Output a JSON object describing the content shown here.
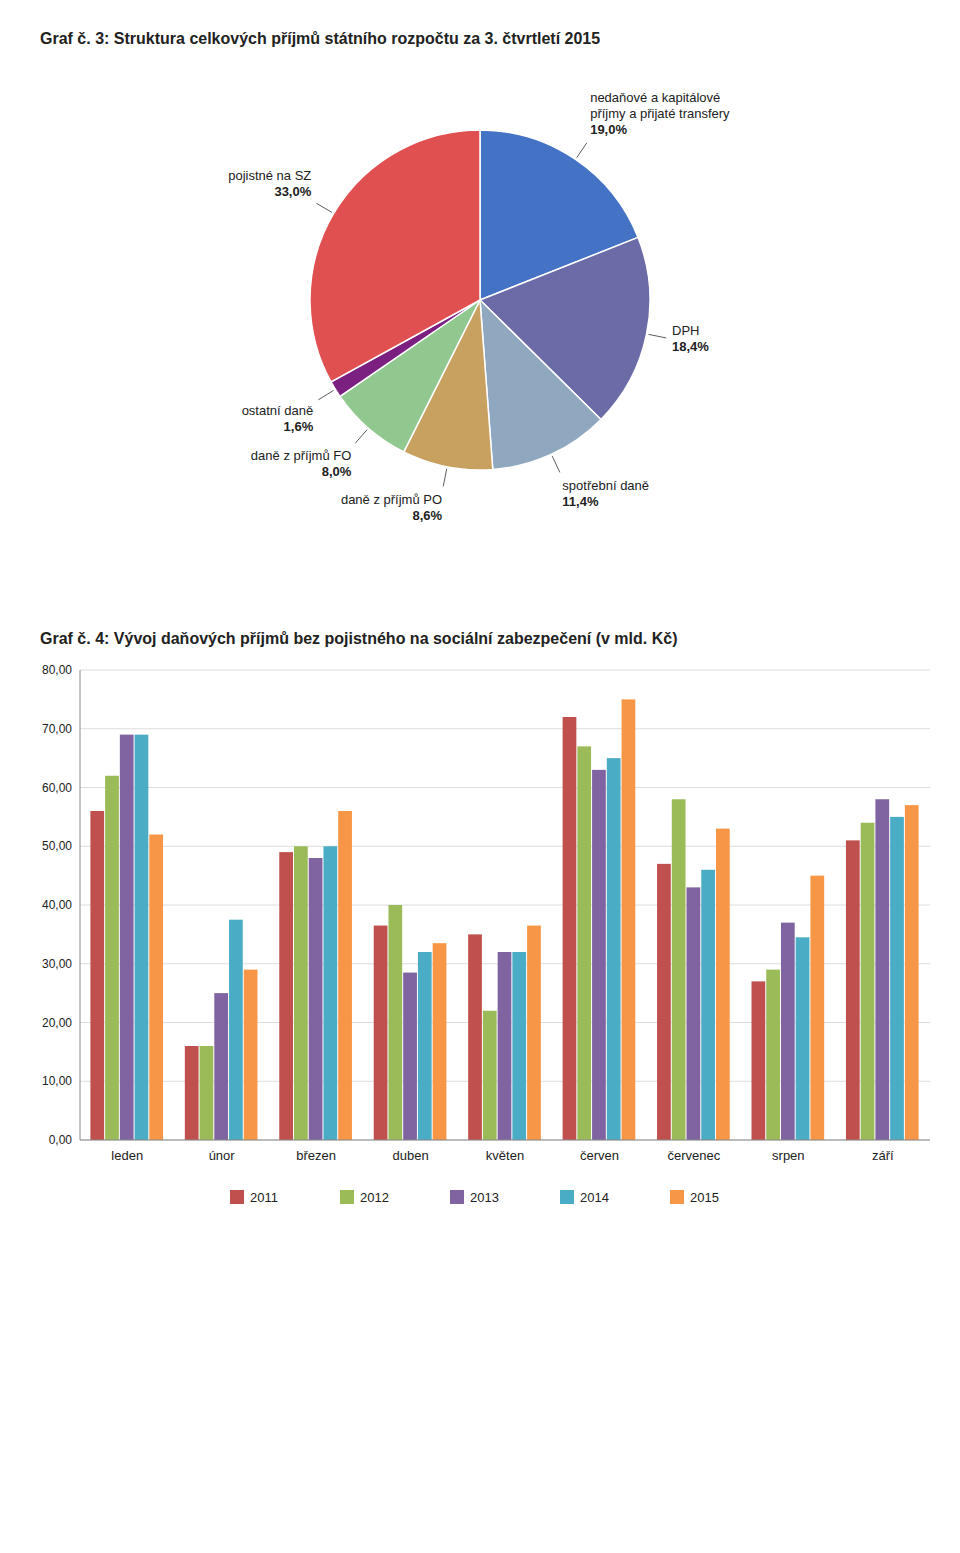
{
  "chart_data": [
    {
      "type": "pie",
      "title": "Graf č. 3: Struktura celkových příjmů státního rozpočtu za 3. čtvrtletí 2015",
      "categories": [
        "nedaňové a kapitálové\npříjmy a přijaté transfery",
        "DPH",
        "spotřební daně",
        "daně z příjmů PO",
        "daně z příjmů FO",
        "ostatní daně",
        "pojistné na SZ"
      ],
      "values": [
        19.0,
        18.4,
        11.4,
        8.6,
        8.0,
        1.6,
        33.0
      ],
      "value_labels": [
        "19,0%",
        "18,4%",
        "11,4%",
        "8,6%",
        "8,0%",
        "1,6%",
        "33,0%"
      ],
      "data_labels": true,
      "colors": [
        "#4472C4",
        "#6B6BA8",
        "#8FA8C0",
        "#C8A060",
        "#90C890",
        "#7B2080",
        "#E05050"
      ]
    },
    {
      "type": "bar",
      "title": "Graf č. 4: Vývoj daňových příjmů bez pojistného na sociální zabezpečení (v mld. Kč)",
      "categories": [
        "leden",
        "únor",
        "březen",
        "duben",
        "květen",
        "červen",
        "červenec",
        "srpen",
        "září"
      ],
      "series": [
        {
          "name": "2011",
          "color": "#C0504D",
          "values": [
            56.0,
            16.0,
            49.0,
            36.5,
            35.0,
            72.0,
            47.0,
            27.0,
            51.0
          ]
        },
        {
          "name": "2012",
          "color": "#9BBB59",
          "values": [
            62.0,
            16.0,
            50.0,
            40.0,
            22.0,
            67.0,
            58.0,
            29.0,
            54.0
          ]
        },
        {
          "name": "2013",
          "color": "#8064A2",
          "values": [
            69.0,
            25.0,
            48.0,
            28.5,
            32.0,
            63.0,
            43.0,
            37.0,
            58.0
          ]
        },
        {
          "name": "2014",
          "color": "#4BACC6",
          "values": [
            69.0,
            37.5,
            50.0,
            32.0,
            32.0,
            65.0,
            46.0,
            34.5,
            55.0
          ]
        },
        {
          "name": "2015",
          "color": "#F79646",
          "values": [
            52.0,
            29.0,
            56.0,
            33.5,
            36.5,
            75.0,
            53.0,
            45.0,
            57.0
          ]
        }
      ],
      "ylim": [
        0,
        80
      ],
      "yticks": [
        {
          "value": 0,
          "label": "0,00"
        },
        {
          "value": 10,
          "label": "10,00"
        },
        {
          "value": 20,
          "label": "20,00"
        },
        {
          "value": 30,
          "label": "30,00"
        },
        {
          "value": 40,
          "label": "40,00"
        },
        {
          "value": 50,
          "label": "50,00"
        },
        {
          "value": 60,
          "label": "60,00"
        },
        {
          "value": 70,
          "label": "70,00"
        },
        {
          "value": 80,
          "label": "80,00"
        }
      ],
      "grid": true,
      "legend": "bottom"
    }
  ]
}
